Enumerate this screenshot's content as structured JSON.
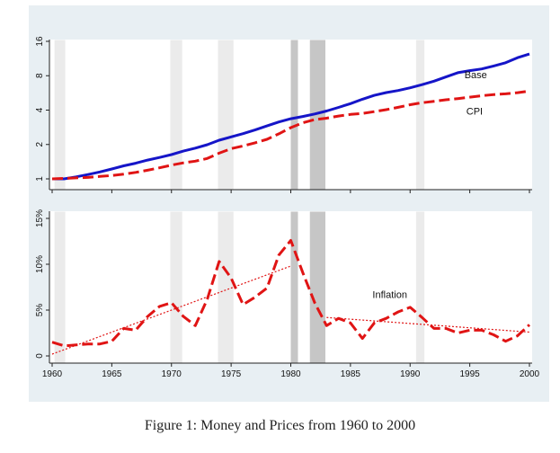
{
  "caption": "Figure 1: Money and Prices from 1960 to 2000",
  "chart_data": [
    {
      "type": "line",
      "title": "",
      "xlabel": "",
      "ylabel": "",
      "y_scale": "log2",
      "xlim": [
        1960,
        2000
      ],
      "ylim": [
        1,
        16
      ],
      "y_ticks": [
        1,
        2,
        4,
        8,
        16
      ],
      "y_tick_labels": [
        "1",
        "2",
        "4",
        "8",
        "16"
      ],
      "grid": false,
      "legend": "none",
      "shaded_periods": [
        {
          "start": 1960.2,
          "end": 1961.1,
          "shade": "light"
        },
        {
          "start": 1969.9,
          "end": 1970.9,
          "shade": "light"
        },
        {
          "start": 1973.9,
          "end": 1975.2,
          "shade": "light"
        },
        {
          "start": 1980.0,
          "end": 1980.6,
          "shade": "dark"
        },
        {
          "start": 1981.6,
          "end": 1982.9,
          "shade": "dark"
        },
        {
          "start": 1990.5,
          "end": 1991.2,
          "shade": "light"
        }
      ],
      "series": [
        {
          "name": "Base",
          "color": "#1515c8",
          "style": "solid",
          "x": [
            1960,
            1961,
            1962,
            1963,
            1964,
            1965,
            1966,
            1967,
            1968,
            1969,
            1970,
            1971,
            1972,
            1973,
            1974,
            1975,
            1976,
            1977,
            1978,
            1979,
            1980,
            1981,
            1982,
            1983,
            1984,
            1985,
            1986,
            1987,
            1988,
            1989,
            1990,
            1991,
            1992,
            1993,
            1994,
            1995,
            1996,
            1997,
            1998,
            1999,
            2000
          ],
          "values": [
            1.0,
            1.0,
            1.04,
            1.09,
            1.15,
            1.22,
            1.3,
            1.37,
            1.46,
            1.54,
            1.63,
            1.75,
            1.86,
            1.99,
            2.18,
            2.33,
            2.49,
            2.68,
            2.91,
            3.15,
            3.36,
            3.52,
            3.7,
            3.93,
            4.22,
            4.56,
            4.98,
            5.38,
            5.7,
            5.94,
            6.27,
            6.68,
            7.17,
            7.81,
            8.5,
            8.87,
            9.18,
            9.73,
            10.4,
            11.5,
            12.4
          ]
        },
        {
          "name": "CPI",
          "color": "#e01414",
          "style": "dashed",
          "x": [
            1960,
            1961,
            1962,
            1963,
            1964,
            1965,
            1966,
            1967,
            1968,
            1969,
            1970,
            1971,
            1972,
            1973,
            1974,
            1975,
            1976,
            1977,
            1978,
            1979,
            1980,
            1981,
            1982,
            1983,
            1984,
            1985,
            1986,
            1987,
            1988,
            1989,
            1990,
            1991,
            1992,
            1993,
            1994,
            1995,
            1996,
            1997,
            1998,
            1999,
            2000
          ],
          "values": [
            1.0,
            1.01,
            1.02,
            1.03,
            1.05,
            1.07,
            1.1,
            1.14,
            1.19,
            1.25,
            1.32,
            1.38,
            1.43,
            1.51,
            1.68,
            1.84,
            1.94,
            2.07,
            2.22,
            2.48,
            2.81,
            3.1,
            3.3,
            3.4,
            3.55,
            3.67,
            3.74,
            3.88,
            4.04,
            4.23,
            4.46,
            4.64,
            4.78,
            4.93,
            5.04,
            5.19,
            5.35,
            5.47,
            5.55,
            5.68,
            5.87
          ]
        }
      ]
    },
    {
      "type": "line",
      "title": "",
      "xlabel": "",
      "ylabel": "",
      "xlim": [
        1960,
        2000
      ],
      "ylim": [
        0,
        15
      ],
      "x_ticks": [
        1960,
        1965,
        1970,
        1975,
        1980,
        1985,
        1990,
        1995,
        2000
      ],
      "x_tick_labels": [
        "1960",
        "1965",
        "1970",
        "1975",
        "1980",
        "1985",
        "1990",
        "1995",
        "2000"
      ],
      "y_ticks": [
        0,
        5,
        10,
        15
      ],
      "y_tick_labels": [
        "0",
        "5%",
        "10%",
        "15%"
      ],
      "grid": false,
      "legend": "none",
      "shaded_periods": [
        {
          "start": 1960.2,
          "end": 1961.1,
          "shade": "light"
        },
        {
          "start": 1969.9,
          "end": 1970.9,
          "shade": "light"
        },
        {
          "start": 1973.9,
          "end": 1975.2,
          "shade": "light"
        },
        {
          "start": 1980.0,
          "end": 1980.6,
          "shade": "dark"
        },
        {
          "start": 1981.6,
          "end": 1982.9,
          "shade": "dark"
        },
        {
          "start": 1990.5,
          "end": 1991.2,
          "shade": "light"
        }
      ],
      "series": [
        {
          "name": "Inflation",
          "color": "#e01414",
          "style": "dashed",
          "x": [
            1960,
            1961,
            1962,
            1963,
            1964,
            1965,
            1966,
            1967,
            1968,
            1969,
            1970,
            1971,
            1972,
            1973,
            1974,
            1975,
            1976,
            1977,
            1978,
            1979,
            1980,
            1981,
            1982,
            1983,
            1984,
            1985,
            1986,
            1987,
            1988,
            1989,
            1990,
            1991,
            1992,
            1993,
            1994,
            1995,
            1996,
            1997,
            1998,
            1999,
            2000
          ],
          "values": [
            1.5,
            1.1,
            1.2,
            1.3,
            1.3,
            1.6,
            3.0,
            2.8,
            4.3,
            5.4,
            5.8,
            4.3,
            3.3,
            6.2,
            10.3,
            8.5,
            5.6,
            6.4,
            7.4,
            11.0,
            12.6,
            9.1,
            5.8,
            3.3,
            4.1,
            3.6,
            1.9,
            3.6,
            4.1,
            4.8,
            5.3,
            4.2,
            3.0,
            3.0,
            2.5,
            2.8,
            2.8,
            2.3,
            1.6,
            2.2,
            3.4
          ]
        }
      ],
      "trend_lines": [
        {
          "x": [
            1960,
            1980
          ],
          "values": [
            0.2,
            9.8
          ],
          "color": "#e01414",
          "style": "dotted"
        },
        {
          "x": [
            1983,
            2000
          ],
          "values": [
            4.2,
            2.6
          ],
          "color": "#e01414",
          "style": "dotted"
        }
      ]
    }
  ]
}
